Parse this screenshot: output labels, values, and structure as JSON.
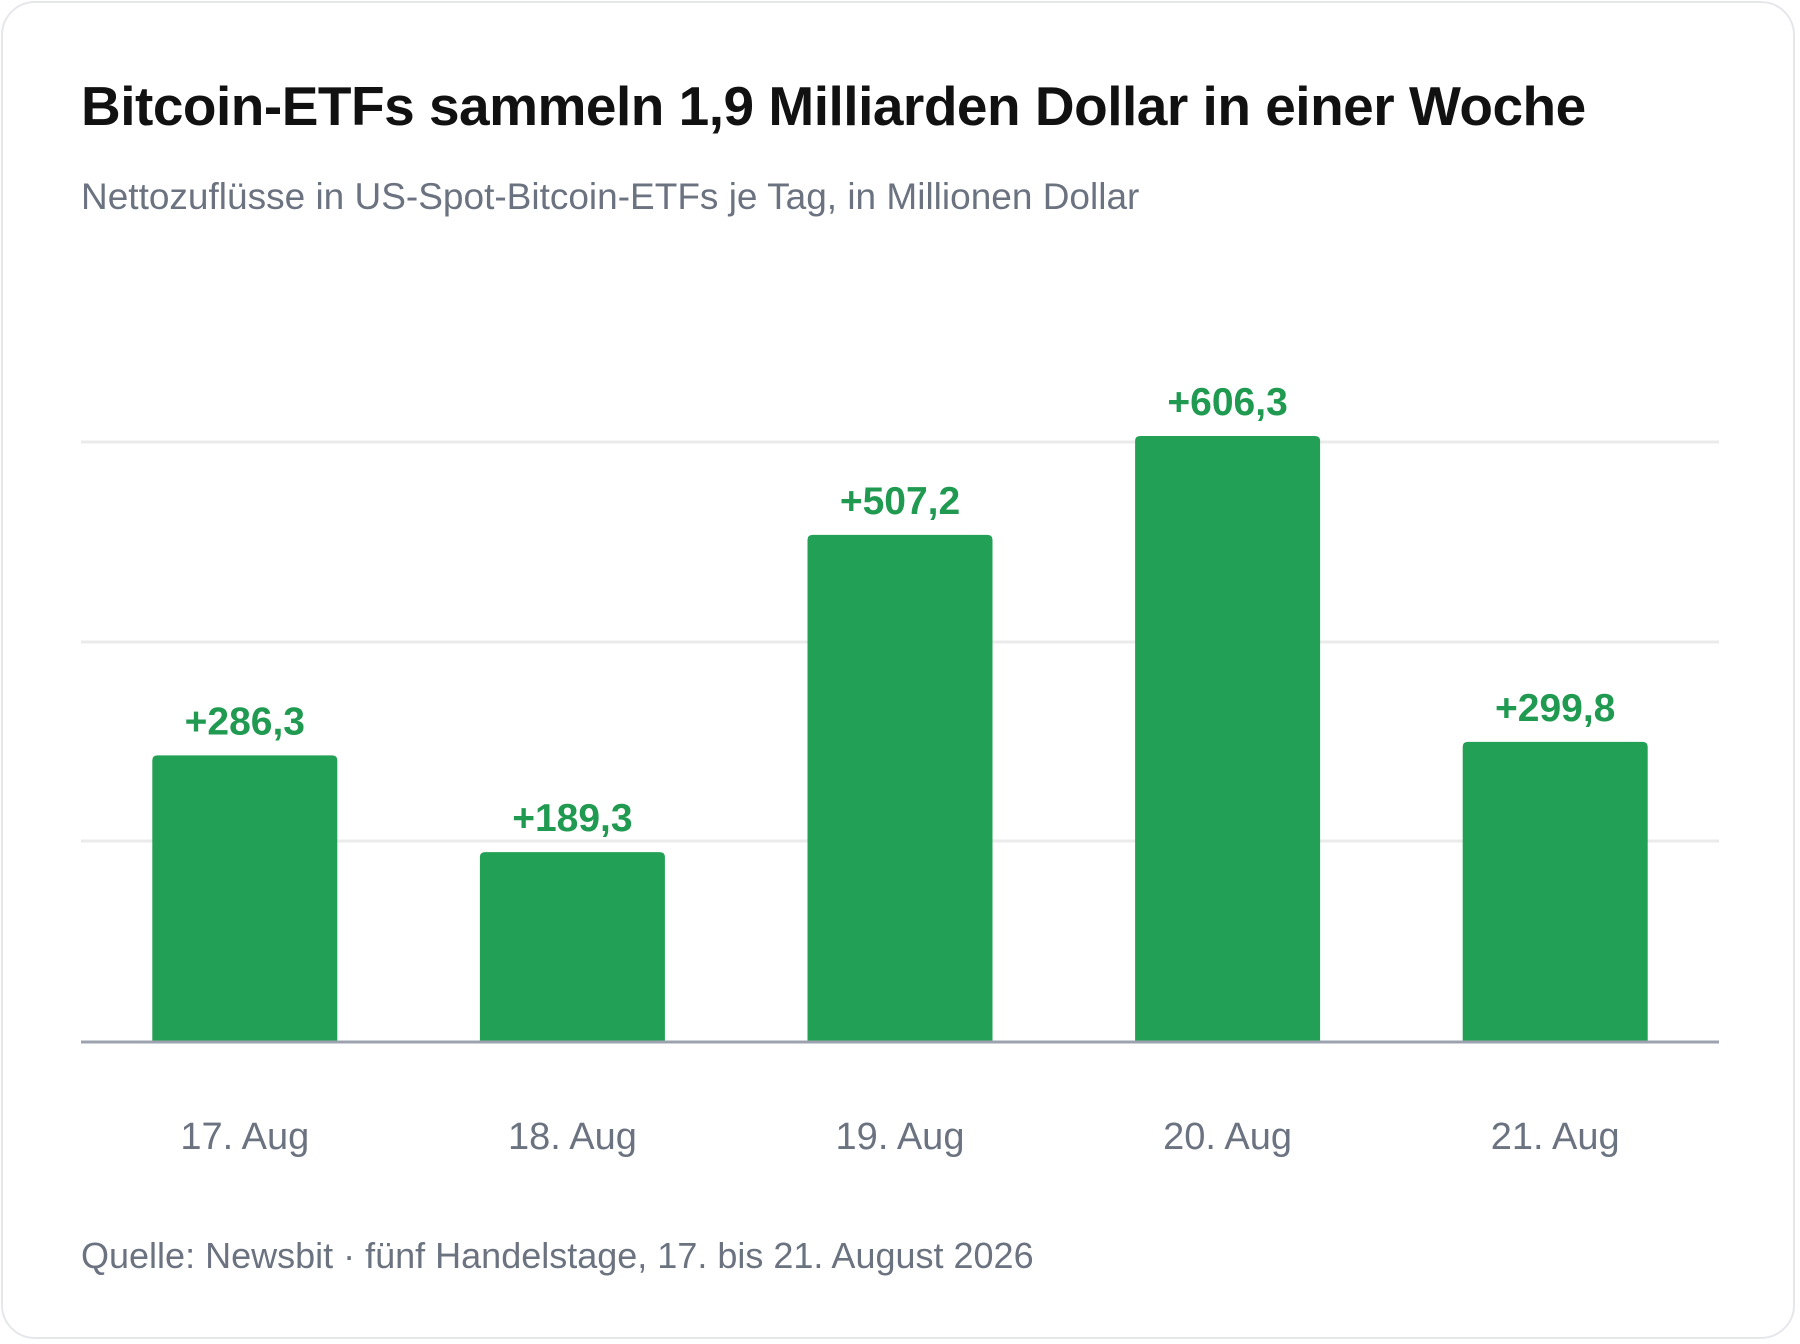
{
  "header": {
    "title": "Bitcoin-ETFs sammeln 1,9 Milliarden Dollar in einer Woche",
    "subtitle": "Nettozuflüsse in US-Spot-Bitcoin-ETFs je Tag, in Millionen Dollar"
  },
  "footer": {
    "source": "Quelle: Newsbit · fünf Handelstage, 17. bis 21. August 2026"
  },
  "colors": {
    "bar": "#22a055",
    "value_label": "#1f9a50",
    "gridline": "#ebebeb",
    "baseline": "#9ca3af",
    "tick_label": "#6b7280"
  },
  "chart_data": {
    "type": "bar",
    "categories": [
      "17. Aug",
      "18. Aug",
      "19. Aug",
      "20. Aug",
      "21. Aug"
    ],
    "values": [
      286.3,
      189.3,
      507.2,
      606.3,
      299.8
    ],
    "value_labels": [
      "+286,3",
      "+189,3",
      "+507,2",
      "+606,3",
      "+299,8"
    ],
    "title": "Bitcoin-ETFs sammeln 1,9 Milliarden Dollar in einer Woche",
    "subtitle": "Nettozuflüsse in US-Spot-Bitcoin-ETFs je Tag, in Millionen Dollar",
    "xlabel": "",
    "ylabel": "",
    "ylim": [
      0,
      600
    ],
    "gridlines": [
      200,
      400,
      600
    ],
    "grid": true,
    "legend": "none"
  }
}
